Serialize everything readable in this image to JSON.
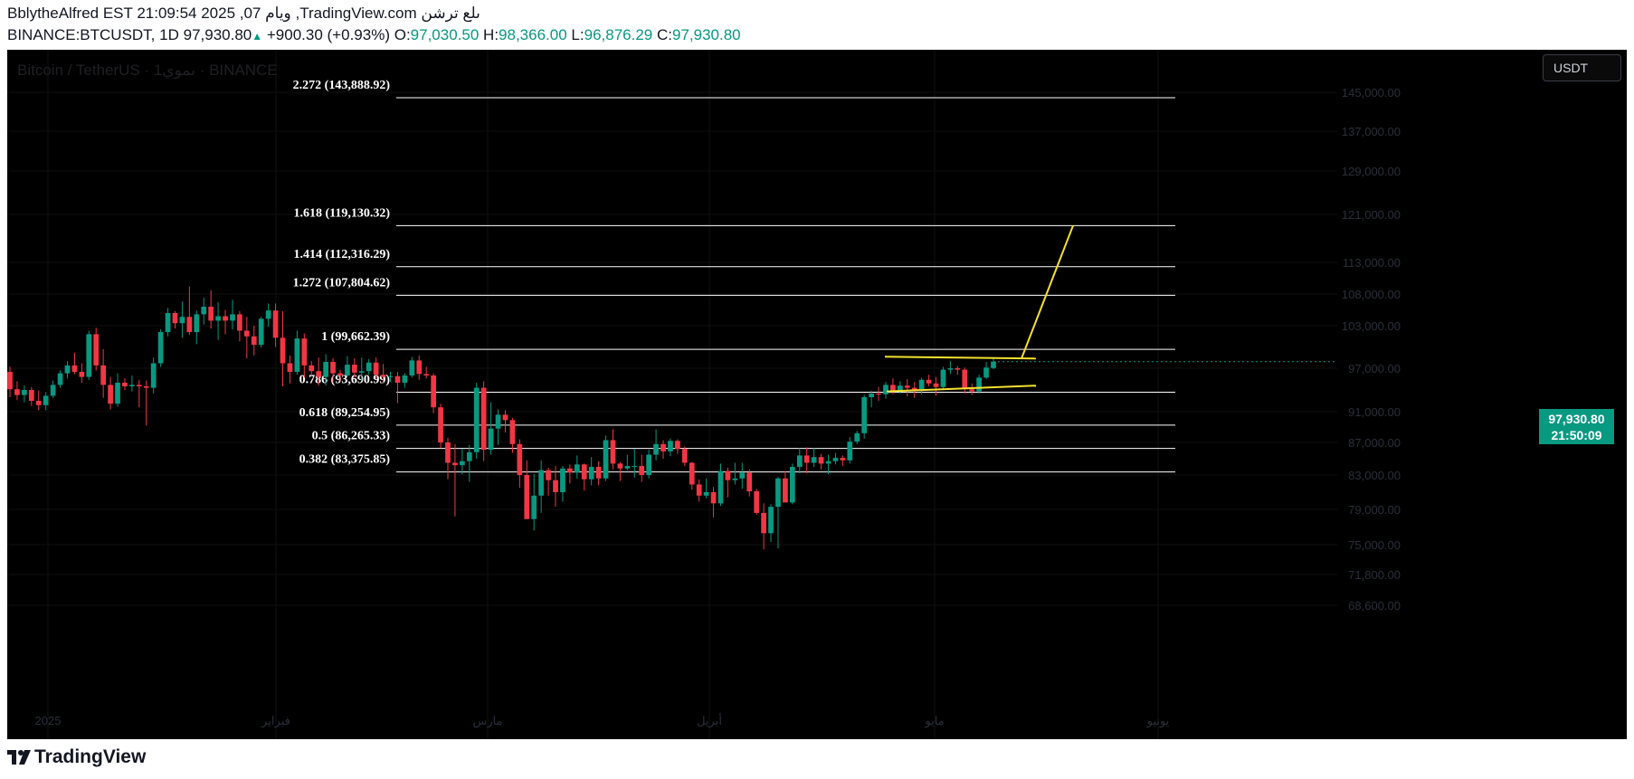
{
  "header": {
    "line1": "BblytheAlfred EST 21:09:54 2025 ,07 ويام ,TradingView.com ىلع ترشن",
    "symbol": "BINANCE:BTCUSDT, 1D",
    "last": "97,930.80",
    "change": "+900.30 (+0.93%)",
    "o_label": "O:",
    "o_val": "97,030.50",
    "h_label": "H:",
    "h_val": "98,366.00",
    "l_label": "L:",
    "l_val": "96,876.29",
    "c_label": "C:",
    "c_val": "97,930.80"
  },
  "watermark": "Bitcoin / TetherUS · 1ىموي · BINANCE",
  "currency_button": "USDT",
  "price_tag": {
    "price": "97,930.80",
    "countdown": "21:50:09"
  },
  "footer": {
    "brand": "TradingView"
  },
  "colors": {
    "up": "#089981",
    "down": "#f23645",
    "fib": "#ffffff",
    "drawing": "#f2e12e",
    "bg": "#000000"
  },
  "chart_data": {
    "type": "candlestick",
    "title": "Bitcoin / TetherUS · 1ىموي · BINANCE",
    "timeframe": "1D",
    "ylim": [
      66600,
      150000
    ],
    "y_ticks": [
      "145,000.00",
      "137,000.00",
      "129,000.00",
      "121,000.00",
      "113,000.00",
      "108,000.00",
      "103,000.00",
      "97,000.00",
      "91,000.00",
      "87,000.00",
      "83,000.00",
      "79,000.00",
      "75,000.00",
      "71,800.00",
      "68,600.00"
    ],
    "x_ticks": [
      "2025",
      "فبراير",
      "مارس",
      "أبريل",
      "مايو",
      "يونيو"
    ],
    "grid": true,
    "fib_levels": [
      {
        "label": "2.272 (143,888.92)",
        "value": 143888.92
      },
      {
        "label": "1.618 (119,130.32)",
        "value": 119130.32
      },
      {
        "label": "1.414 (112,316.29)",
        "value": 112316.29
      },
      {
        "label": "1.272 (107,804.62)",
        "value": 107804.62
      },
      {
        "label": "1 (99,662.39)",
        "value": 99662.39
      },
      {
        "label": "0.786 (93,690.99)",
        "value": 93690.99
      },
      {
        "label": "0.618 (89,254.95)",
        "value": 89254.95
      },
      {
        "label": "0.5 (86,265.33)",
        "value": 86265.33
      },
      {
        "label": "0.382 (83,375.85)",
        "value": 83375.85
      }
    ],
    "candles_ohlc": [
      [
        96500,
        97200,
        93000,
        94100
      ],
      [
        94100,
        95200,
        92600,
        93300
      ],
      [
        93300,
        94600,
        92300,
        94000
      ],
      [
        94000,
        94400,
        91800,
        92500
      ],
      [
        92500,
        93900,
        91200,
        91900
      ],
      [
        91900,
        93700,
        91200,
        93200
      ],
      [
        93200,
        95300,
        92900,
        94700
      ],
      [
        94700,
        96700,
        94300,
        96300
      ],
      [
        96300,
        98000,
        95600,
        97400
      ],
      [
        97400,
        99200,
        96200,
        96500
      ],
      [
        96500,
        97700,
        95000,
        95800
      ],
      [
        95800,
        102300,
        95400,
        101800
      ],
      [
        101800,
        102700,
        96700,
        97400
      ],
      [
        97400,
        99700,
        92900,
        94700
      ],
      [
        94700,
        95800,
        91300,
        92100
      ],
      [
        92100,
        96300,
        91700,
        95000
      ],
      [
        95000,
        95600,
        94000,
        94500
      ],
      [
        94500,
        96000,
        93800,
        94700
      ],
      [
        94700,
        95400,
        91600,
        94500
      ],
      [
        94500,
        95300,
        89200,
        94300
      ],
      [
        94300,
        98500,
        93500,
        97700
      ],
      [
        97700,
        102500,
        97200,
        102100
      ],
      [
        102100,
        105800,
        101500,
        105000
      ],
      [
        105000,
        105300,
        102600,
        103400
      ],
      [
        103400,
        106800,
        101300,
        104400
      ],
      [
        104400,
        109200,
        101700,
        102100
      ],
      [
        102100,
        105400,
        100400,
        104800
      ],
      [
        104800,
        107400,
        103200,
        106000
      ],
      [
        106000,
        108600,
        102600,
        103800
      ],
      [
        103800,
        106700,
        101000,
        104500
      ],
      [
        104500,
        105500,
        101800,
        103800
      ],
      [
        103800,
        107100,
        102500,
        104800
      ],
      [
        104800,
        105300,
        100800,
        102300
      ],
      [
        102300,
        104400,
        98400,
        101500
      ],
      [
        101500,
        103000,
        98800,
        100300
      ],
      [
        100300,
        104400,
        99900,
        104100
      ],
      [
        104100,
        106500,
        102900,
        105400
      ],
      [
        105400,
        106500,
        100000,
        101300
      ],
      [
        101300,
        105300,
        94500,
        97700
      ],
      [
        97700,
        98800,
        94900,
        96500
      ],
      [
        96500,
        102300,
        96100,
        101200
      ],
      [
        101200,
        101900,
        95700,
        97400
      ],
      [
        97400,
        98000,
        95900,
        96600
      ],
      [
        96600,
        98500,
        94600,
        95800
      ],
      [
        95800,
        99000,
        94600,
        97900
      ],
      [
        97900,
        98400,
        95000,
        96300
      ],
      [
        96300,
        96800,
        95200,
        96000
      ],
      [
        96000,
        98700,
        95800,
        97500
      ],
      [
        97500,
        98400,
        95700,
        96400
      ],
      [
        96400,
        98500,
        95200,
        96600
      ],
      [
        96600,
        98300,
        96100,
        97800
      ],
      [
        97800,
        98500,
        95600,
        96100
      ],
      [
        96100,
        97600,
        94900,
        95800
      ],
      [
        95800,
        96500,
        95100,
        95900
      ],
      [
        95900,
        96500,
        92200,
        95000
      ],
      [
        95000,
        96300,
        94300,
        96000
      ],
      [
        96000,
        98600,
        95700,
        98100
      ],
      [
        98100,
        98800,
        95400,
        96200
      ],
      [
        96200,
        97200,
        95600,
        96000
      ],
      [
        96000,
        96300,
        90800,
        91600
      ],
      [
        91600,
        92100,
        86300,
        87000
      ],
      [
        87000,
        87600,
        82500,
        84500
      ],
      [
        84500,
        86800,
        78200,
        84200
      ],
      [
        84200,
        86200,
        83100,
        84700
      ],
      [
        84700,
        86700,
        82200,
        85800
      ],
      [
        85800,
        95000,
        85000,
        94300
      ],
      [
        94300,
        95200,
        84700,
        86100
      ],
      [
        86100,
        92300,
        85500,
        88800
      ],
      [
        88800,
        91300,
        86700,
        90600
      ],
      [
        90600,
        91200,
        88300,
        89900
      ],
      [
        89900,
        90200,
        85700,
        86800
      ],
      [
        86800,
        87400,
        81500,
        83000
      ],
      [
        83000,
        84800,
        77900,
        77900
      ],
      [
        77900,
        83100,
        76600,
        80600
      ],
      [
        80600,
        84800,
        78600,
        83600
      ],
      [
        83600,
        83900,
        80600,
        82400
      ],
      [
        82400,
        84100,
        79300,
        81000
      ],
      [
        81000,
        84100,
        79900,
        83800
      ],
      [
        83800,
        84300,
        82000,
        83300
      ],
      [
        83300,
        85400,
        82600,
        84300
      ],
      [
        84300,
        84400,
        81200,
        82500
      ],
      [
        82500,
        85200,
        81800,
        84000
      ],
      [
        84000,
        84700,
        81800,
        82600
      ],
      [
        82600,
        87900,
        82300,
        87300
      ],
      [
        87300,
        88700,
        83700,
        84400
      ],
      [
        84400,
        84600,
        82300,
        83800
      ],
      [
        83800,
        85500,
        83600,
        84100
      ],
      [
        84100,
        86200,
        82700,
        84100
      ],
      [
        84100,
        85500,
        82200,
        83000
      ],
      [
        83000,
        86100,
        82600,
        85500
      ],
      [
        85500,
        88700,
        84800,
        86800
      ],
      [
        86800,
        87300,
        85000,
        85900
      ],
      [
        85900,
        87500,
        85300,
        87200
      ],
      [
        87200,
        87400,
        85600,
        86200
      ],
      [
        86200,
        86500,
        84100,
        84500
      ],
      [
        84500,
        84600,
        81300,
        81900
      ],
      [
        81900,
        82500,
        79900,
        80600
      ],
      [
        80600,
        82600,
        80300,
        81000
      ],
      [
        81000,
        81600,
        78100,
        79700
      ],
      [
        79700,
        84400,
        79400,
        83500
      ],
      [
        83500,
        83900,
        80400,
        82400
      ],
      [
        82400,
        84500,
        81900,
        82600
      ],
      [
        82600,
        84500,
        81400,
        83300
      ],
      [
        83300,
        83700,
        80500,
        81100
      ],
      [
        81100,
        81400,
        78400,
        78600
      ],
      [
        78600,
        79700,
        74500,
        76300
      ],
      [
        76300,
        79600,
        75300,
        79300
      ],
      [
        79300,
        82800,
        74600,
        82600
      ],
      [
        82600,
        83500,
        79900,
        79800
      ],
      [
        79800,
        84400,
        79600,
        84000
      ],
      [
        84000,
        86300,
        83200,
        85400
      ],
      [
        85400,
        86400,
        83200,
        84500
      ],
      [
        84500,
        86300,
        84000,
        85200
      ],
      [
        85200,
        85600,
        83700,
        84400
      ],
      [
        84400,
        85500,
        83100,
        84700
      ],
      [
        84700,
        85700,
        84300,
        85100
      ],
      [
        85100,
        85400,
        84100,
        84800
      ],
      [
        84800,
        87700,
        84400,
        87100
      ],
      [
        87100,
        88500,
        86800,
        88200
      ],
      [
        88200,
        93300,
        87500,
        93000
      ],
      [
        93000,
        93900,
        91600,
        93500
      ],
      [
        93500,
        94400,
        92500,
        93400
      ],
      [
        93400,
        95100,
        92800,
        94700
      ],
      [
        94700,
        95600,
        93400,
        93900
      ],
      [
        93900,
        95200,
        93500,
        94600
      ],
      [
        94600,
        95500,
        93100,
        94300
      ],
      [
        94300,
        95100,
        92900,
        94000
      ],
      [
        94000,
        95700,
        93400,
        95400
      ],
      [
        95400,
        96100,
        94500,
        94900
      ],
      [
        94900,
        95800,
        93200,
        94400
      ],
      [
        94400,
        97200,
        94000,
        96800
      ],
      [
        96800,
        98000,
        96200,
        97000
      ],
      [
        97000,
        97300,
        96100,
        96800
      ],
      [
        96800,
        97100,
        93500,
        94100
      ],
      [
        94100,
        94900,
        93300,
        93800
      ],
      [
        93800,
        96100,
        93500,
        95700
      ],
      [
        95700,
        97900,
        95500,
        97100
      ],
      [
        97030.5,
        98366,
        96876.29,
        97930.8
      ]
    ],
    "annotations": [
      {
        "type": "ascending_triangle_breakout",
        "resistance": 98500,
        "support_start": 93800,
        "support_end": 94600
      },
      {
        "type": "projection_line",
        "from": 98500,
        "to": 119130.32
      }
    ]
  }
}
